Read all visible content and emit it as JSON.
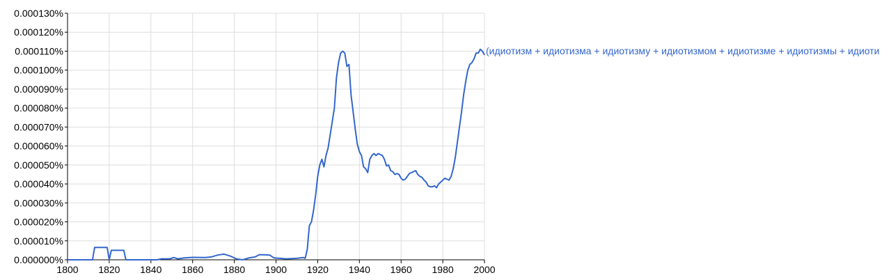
{
  "chart_data": {
    "type": "line",
    "title": "",
    "xlabel": "",
    "ylabel": "",
    "xlim": [
      1800,
      2000
    ],
    "ylim": [
      0,
      1.3e-06
    ],
    "grid": true,
    "x_ticks": [
      "1800",
      "1820",
      "1840",
      "1860",
      "1880",
      "1900",
      "1920",
      "1940",
      "1960",
      "1980",
      "2000"
    ],
    "y_ticks": [
      "0.000000%",
      "0.000010%",
      "0.000020%",
      "0.000030%",
      "0.000040%",
      "0.000050%",
      "0.000060%",
      "0.000070%",
      "0.000080%",
      "0.000090%",
      "0.000100%",
      "0.000110%",
      "0.000120%",
      "0.000130%"
    ],
    "colors": {
      "series": "#3366cc",
      "grid": "#dddddd",
      "axis": "#000000"
    },
    "series": [
      {
        "name": "(идиотизм + идиотизма + идиотизму + идиотизмом + идиотизме + идиотизмы + идиоти",
        "points": [
          [
            1800,
            0
          ],
          [
            1812,
            0
          ],
          [
            1813,
            6.5e-08
          ],
          [
            1819,
            6.5e-08
          ],
          [
            1820,
            0
          ],
          [
            1821,
            5e-08
          ],
          [
            1827,
            5e-08
          ],
          [
            1828,
            0
          ],
          [
            1843,
            0
          ],
          [
            1845,
            5e-09
          ],
          [
            1849,
            5e-09
          ],
          [
            1851,
            1.2e-08
          ],
          [
            1853,
            5e-09
          ],
          [
            1856,
            1e-08
          ],
          [
            1860,
            1.3e-08
          ],
          [
            1866,
            1.2e-08
          ],
          [
            1869,
            1.5e-08
          ],
          [
            1872,
            2.5e-08
          ],
          [
            1875,
            3e-08
          ],
          [
            1878,
            2e-08
          ],
          [
            1881,
            5e-09
          ],
          [
            1884,
            0
          ],
          [
            1887,
            1e-08
          ],
          [
            1890,
            1.5e-08
          ],
          [
            1892,
            2.7e-08
          ],
          [
            1895,
            2.6e-08
          ],
          [
            1897,
            2.5e-08
          ],
          [
            1899,
            1e-08
          ],
          [
            1902,
            8e-09
          ],
          [
            1905,
            5e-09
          ],
          [
            1910,
            8e-09
          ],
          [
            1913,
            1.2e-08
          ],
          [
            1914,
            8e-09
          ],
          [
            1915,
            5.5e-08
          ],
          [
            1916,
            1.8e-07
          ],
          [
            1917,
            2e-07
          ],
          [
            1918,
            2.6e-07
          ],
          [
            1919,
            3.4e-07
          ],
          [
            1920,
            4.4e-07
          ],
          [
            1921,
            5e-07
          ],
          [
            1922,
            5.3e-07
          ],
          [
            1923,
            4.9e-07
          ],
          [
            1924,
            5.5e-07
          ],
          [
            1925,
            5.9e-07
          ],
          [
            1926,
            6.6e-07
          ],
          [
            1927,
            7.3e-07
          ],
          [
            1928,
            8e-07
          ],
          [
            1929,
            9.6e-07
          ],
          [
            1930,
            1.04e-06
          ],
          [
            1931,
            1.09e-06
          ],
          [
            1932,
            1.1e-06
          ],
          [
            1933,
            1.09e-06
          ],
          [
            1934,
            1.02e-06
          ],
          [
            1935,
            1.03e-06
          ],
          [
            1936,
            8.7e-07
          ],
          [
            1937,
            7.8e-07
          ],
          [
            1938,
            6.9e-07
          ],
          [
            1939,
            6.1e-07
          ],
          [
            1940,
            5.7e-07
          ],
          [
            1941,
            5.5e-07
          ],
          [
            1942,
            4.9e-07
          ],
          [
            1943,
            4.8e-07
          ],
          [
            1944,
            4.6e-07
          ],
          [
            1945,
            5.3e-07
          ],
          [
            1946,
            5.5e-07
          ],
          [
            1947,
            5.6e-07
          ],
          [
            1948,
            5.5e-07
          ],
          [
            1949,
            5.6e-07
          ],
          [
            1950,
            5.55e-07
          ],
          [
            1951,
            5.5e-07
          ],
          [
            1952,
            5.3e-07
          ],
          [
            1953,
            4.95e-07
          ],
          [
            1954,
            5e-07
          ],
          [
            1955,
            4.7e-07
          ],
          [
            1956,
            4.65e-07
          ],
          [
            1957,
            4.5e-07
          ],
          [
            1958,
            4.55e-07
          ],
          [
            1959,
            4.5e-07
          ],
          [
            1960,
            4.3e-07
          ],
          [
            1961,
            4.2e-07
          ],
          [
            1962,
            4.25e-07
          ],
          [
            1963,
            4.4e-07
          ],
          [
            1964,
            4.55e-07
          ],
          [
            1965,
            4.6e-07
          ],
          [
            1966,
            4.65e-07
          ],
          [
            1967,
            4.7e-07
          ],
          [
            1968,
            4.5e-07
          ],
          [
            1969,
            4.4e-07
          ],
          [
            1970,
            4.35e-07
          ],
          [
            1971,
            4.2e-07
          ],
          [
            1972,
            4.1e-07
          ],
          [
            1973,
            3.9e-07
          ],
          [
            1974,
            3.85e-07
          ],
          [
            1975,
            3.85e-07
          ],
          [
            1976,
            3.9e-07
          ],
          [
            1977,
            3.8e-07
          ],
          [
            1978,
            4e-07
          ],
          [
            1979,
            4.1e-07
          ],
          [
            1980,
            4.2e-07
          ],
          [
            1981,
            4.3e-07
          ],
          [
            1982,
            4.25e-07
          ],
          [
            1983,
            4.2e-07
          ],
          [
            1984,
            4.4e-07
          ],
          [
            1985,
            4.8e-07
          ],
          [
            1986,
            5.4e-07
          ],
          [
            1987,
            6.2e-07
          ],
          [
            1988,
            7e-07
          ],
          [
            1989,
            7.8e-07
          ],
          [
            1990,
            8.7e-07
          ],
          [
            1991,
            9.4e-07
          ],
          [
            1992,
            1e-06
          ],
          [
            1993,
            1.03e-06
          ],
          [
            1994,
            1.04e-06
          ],
          [
            1995,
            1.06e-06
          ],
          [
            1996,
            1.09e-06
          ],
          [
            1997,
            1.09e-06
          ],
          [
            1998,
            1.11e-06
          ],
          [
            1999,
            1.1e-06
          ],
          [
            2000,
            1.08e-06
          ]
        ]
      }
    ]
  }
}
